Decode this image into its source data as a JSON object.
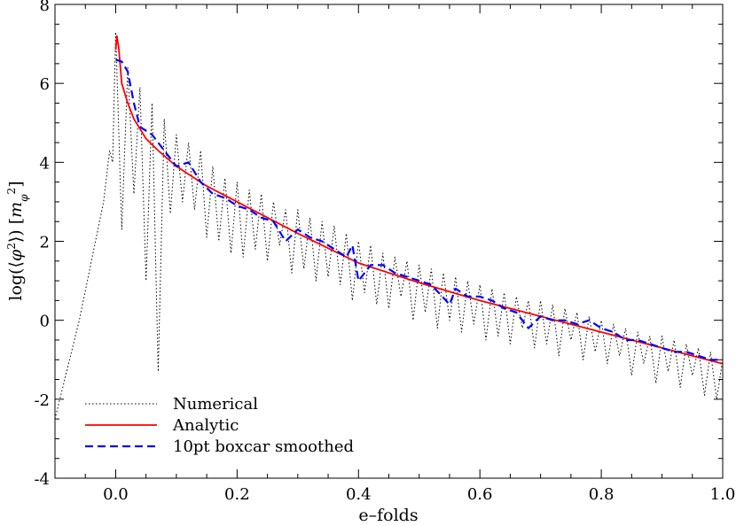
{
  "chart_data": {
    "type": "line",
    "title": "",
    "xlabel": "e–folds",
    "ylabel": "log(⟨φ²⟩) [mφ²]",
    "xlim": [
      -0.1,
      1.0
    ],
    "ylim": [
      -4,
      8
    ],
    "xticks": [
      0.0,
      0.2,
      0.4,
      0.6,
      0.8,
      1.0
    ],
    "xtick_labels": [
      "0.0",
      "0.2",
      "0.4",
      "0.6",
      "0.8",
      "1.0"
    ],
    "yticks": [
      -4,
      -2,
      0,
      2,
      4,
      6,
      8
    ],
    "ytick_labels": [
      "-4",
      "-2",
      "0",
      "2",
      "4",
      "6",
      "8"
    ],
    "grid": false,
    "legend_position": "bottom-left",
    "series": [
      {
        "name": "Numerical",
        "color": "#000000",
        "style": "dotted",
        "x": [
          -0.1,
          -0.06,
          -0.02,
          -0.01,
          -0.005,
          0.0,
          0.01,
          0.02,
          0.03,
          0.04,
          0.05,
          0.06,
          0.07,
          0.08,
          0.09,
          0.1,
          0.11,
          0.12,
          0.13,
          0.14,
          0.15,
          0.16,
          0.17,
          0.18,
          0.19,
          0.2,
          0.21,
          0.22,
          0.23,
          0.24,
          0.25,
          0.26,
          0.27,
          0.28,
          0.29,
          0.3,
          0.31,
          0.32,
          0.33,
          0.34,
          0.35,
          0.36,
          0.37,
          0.38,
          0.39,
          0.4,
          0.41,
          0.42,
          0.43,
          0.44,
          0.45,
          0.46,
          0.47,
          0.48,
          0.49,
          0.5,
          0.51,
          0.52,
          0.53,
          0.54,
          0.55,
          0.56,
          0.57,
          0.58,
          0.59,
          0.6,
          0.61,
          0.62,
          0.63,
          0.64,
          0.65,
          0.66,
          0.67,
          0.68,
          0.69,
          0.7,
          0.71,
          0.72,
          0.73,
          0.74,
          0.75,
          0.76,
          0.77,
          0.78,
          0.79,
          0.8,
          0.81,
          0.82,
          0.83,
          0.84,
          0.85,
          0.86,
          0.87,
          0.88,
          0.89,
          0.9,
          0.91,
          0.92,
          0.93,
          0.94,
          0.95,
          0.96,
          0.97,
          0.98,
          0.99,
          1.0
        ],
        "y": [
          -2.5,
          0.0,
          3.0,
          4.3,
          4.0,
          7.3,
          2.3,
          6.4,
          3.2,
          5.9,
          1.0,
          5.5,
          -1.3,
          5.1,
          2.7,
          4.7,
          3.0,
          4.5,
          2.8,
          4.3,
          2.1,
          3.9,
          2.0,
          3.6,
          1.7,
          3.5,
          1.6,
          3.3,
          1.8,
          3.2,
          1.5,
          3.0,
          1.9,
          2.8,
          1.2,
          2.8,
          1.3,
          2.6,
          1.0,
          2.5,
          1.1,
          2.4,
          0.9,
          2.2,
          0.5,
          2.0,
          0.7,
          1.9,
          0.4,
          1.7,
          0.3,
          1.6,
          0.6,
          1.5,
          0.0,
          1.4,
          0.2,
          1.3,
          -0.2,
          1.2,
          0.0,
          1.1,
          -0.3,
          1.0,
          -0.1,
          0.9,
          -0.5,
          0.8,
          -0.4,
          0.7,
          -0.6,
          0.6,
          -0.2,
          0.5,
          -0.7,
          0.5,
          -0.6,
          0.4,
          -0.9,
          0.3,
          -0.5,
          0.2,
          -1.0,
          0.1,
          -0.8,
          0.0,
          -1.1,
          -0.1,
          -0.9,
          -0.2,
          -1.4,
          -0.3,
          -1.1,
          -0.4,
          -1.6,
          -0.4,
          -1.3,
          -0.5,
          -1.7,
          -0.6,
          -1.4,
          -0.7,
          -1.9,
          -0.8,
          -2.0,
          -1.0
        ]
      },
      {
        "name": "Analytic",
        "color": "#ff0000",
        "style": "solid",
        "x": [
          0.0,
          0.002,
          0.005,
          0.01,
          0.02,
          0.03,
          0.05,
          0.07,
          0.1,
          0.15,
          0.2,
          0.3,
          0.4,
          0.5,
          0.6,
          0.7,
          0.8,
          0.9,
          1.0
        ],
        "y": [
          6.85,
          7.2,
          6.9,
          6.0,
          5.5,
          5.1,
          4.6,
          4.3,
          3.9,
          3.4,
          3.0,
          2.2,
          1.45,
          0.95,
          0.5,
          0.1,
          -0.3,
          -0.7,
          -1.1
        ]
      },
      {
        "name": "10pt boxcar smoothed",
        "color": "#0000ff",
        "style": "dashed",
        "x": [
          0.0,
          0.01,
          0.02,
          0.03,
          0.04,
          0.05,
          0.06,
          0.08,
          0.1,
          0.12,
          0.14,
          0.16,
          0.18,
          0.2,
          0.22,
          0.24,
          0.26,
          0.28,
          0.3,
          0.32,
          0.34,
          0.36,
          0.38,
          0.39,
          0.4,
          0.42,
          0.44,
          0.46,
          0.48,
          0.5,
          0.52,
          0.55,
          0.56,
          0.58,
          0.6,
          0.62,
          0.64,
          0.66,
          0.68,
          0.7,
          0.72,
          0.74,
          0.76,
          0.78,
          0.8,
          0.82,
          0.84,
          0.86,
          0.88,
          0.9,
          0.92,
          0.94,
          0.96,
          0.98,
          1.0
        ],
        "y": [
          6.6,
          6.55,
          6.3,
          5.5,
          4.9,
          4.8,
          4.7,
          4.3,
          3.9,
          4.0,
          3.5,
          3.2,
          3.1,
          2.9,
          2.8,
          2.6,
          2.5,
          2.0,
          2.3,
          2.1,
          2.0,
          1.8,
          1.6,
          1.9,
          1.0,
          1.4,
          1.4,
          1.2,
          1.1,
          1.0,
          0.9,
          0.4,
          0.8,
          0.6,
          0.6,
          0.5,
          0.3,
          0.2,
          -0.2,
          0.1,
          0.0,
          0.0,
          -0.1,
          0.0,
          -0.2,
          -0.3,
          -0.5,
          -0.5,
          -0.6,
          -0.7,
          -0.8,
          -0.8,
          -0.9,
          -1.0,
          -1.0
        ]
      }
    ]
  }
}
